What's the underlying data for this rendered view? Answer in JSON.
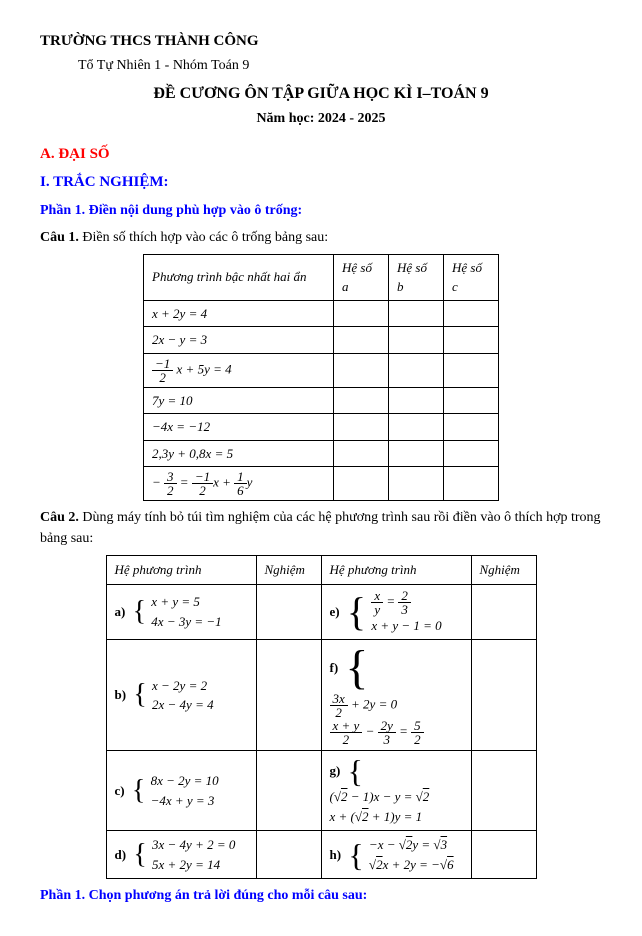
{
  "header": {
    "school": "TRƯỜNG THCS THÀNH CÔNG",
    "group": "Tổ Tự Nhiên 1 - Nhóm Toán 9",
    "title": "ĐỀ CƯƠNG ÔN TẬP GIỮA HỌC KÌ I–TOÁN 9",
    "year": "Năm học: 2024 - 2025"
  },
  "sections": {
    "a": "A. ĐẠI SỐ",
    "i": "I. TRẮC NGHIỆM:",
    "phan1": "Phần 1. Điền nội dung phù hợp vào ô trống:",
    "phan2": "Phần 1. Chọn phương án trả lời đúng cho mỗi câu sau:"
  },
  "cau1": {
    "label": "Câu 1.",
    "text": " Điền số thích hợp vào các ô trống bảng sau:",
    "table": {
      "headers": [
        "Phương trình bậc nhất hai ẩn",
        "Hệ số a",
        "Hệ số b",
        "Hệ số c"
      ],
      "rows": [
        {
          "eq_html": "x + 2y = 4"
        },
        {
          "eq_html": "2x − y = 3"
        },
        {
          "eq_html_frac": {
            "num": "−1",
            "den": "2",
            "rest": "x + 5y = 4"
          }
        },
        {
          "eq_html": "7y = 10"
        },
        {
          "eq_html": "−4x = −12"
        },
        {
          "eq_html": "2,3y + 0,8x = 5"
        },
        {
          "eq_html_multi": {
            "lhs_n": "3",
            "lhs_d": "2",
            "mid_n": "−1",
            "mid_d": "2",
            "r_n": "1",
            "r_d": "6"
          }
        }
      ]
    }
  },
  "cau2": {
    "label": "Câu 2.",
    "text": " Dùng máy tính bỏ túi tìm nghiệm của các hệ phương trình sau rồi điền vào ô thích hợp trong bảng sau:",
    "headers": [
      "Hệ phương trình",
      "Nghiệm",
      "Hệ phương trình",
      "Nghiệm"
    ],
    "labels": {
      "a": "a)",
      "b": "b)",
      "c": "c)",
      "d": "d)",
      "e": "e)",
      "f": "f)",
      "g": "g)",
      "h": "h)"
    },
    "rows": {
      "a": [
        "x + y = 5",
        "4x − 3y = −1"
      ],
      "b": [
        "x − 2y = 2",
        "2x − 4y = 4"
      ],
      "c": [
        "8x − 2y = 10",
        "−4x + y = 3"
      ],
      "d": [
        "3x − 4y + 2 = 0",
        "5x + 2y = 14"
      ]
    }
  },
  "colors": {
    "red": "#ff0000",
    "blue": "#0000ff",
    "black": "#000000",
    "bg": "#ffffff"
  }
}
